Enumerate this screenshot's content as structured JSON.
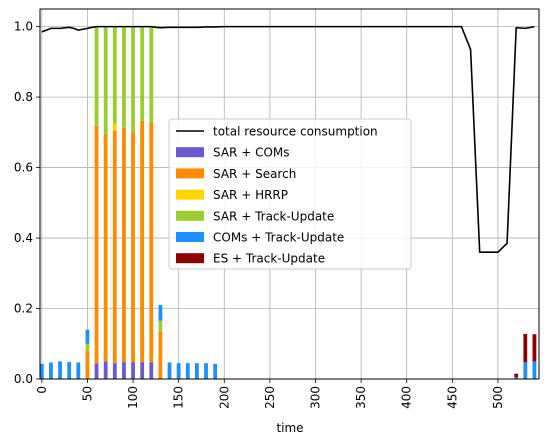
{
  "chart_data": {
    "type": "bar",
    "stacked": true,
    "title": "",
    "xlabel": "time",
    "ylabel": "",
    "xlim": [
      -2,
      545
    ],
    "ylim": [
      0.0,
      1.05
    ],
    "grid": true,
    "legend_position": "center",
    "xticks": [
      0,
      50,
      100,
      150,
      200,
      250,
      300,
      350,
      400,
      450,
      500
    ],
    "yticks": [
      0.0,
      0.2,
      0.4,
      0.6,
      0.8,
      1.0
    ],
    "xtick_rotation": 90,
    "categories": [
      0,
      10,
      20,
      30,
      40,
      50,
      60,
      70,
      80,
      90,
      100,
      110,
      120,
      130,
      140,
      150,
      160,
      170,
      180,
      190,
      520,
      530,
      540
    ],
    "series": [
      {
        "name": "SAR + COMs",
        "color": "#6a5acd",
        "values": [
          0,
          0,
          0,
          0,
          0,
          0,
          0.045,
          0.05,
          0.045,
          0.048,
          0.048,
          0.048,
          0.048,
          0,
          0,
          0,
          0,
          0,
          0,
          0,
          0,
          0,
          0
        ]
      },
      {
        "name": "SAR + Search",
        "color": "#ff8c00",
        "values": [
          0,
          0,
          0,
          0,
          0,
          0.08,
          0.675,
          0.645,
          0.66,
          0.665,
          0.655,
          0.685,
          0.68,
          0.135,
          0,
          0,
          0,
          0,
          0,
          0,
          0,
          0,
          0
        ]
      },
      {
        "name": "SAR + HRRP",
        "color": "#ffd700",
        "values": [
          0,
          0,
          0,
          0,
          0,
          0,
          0,
          0,
          0.02,
          0,
          0,
          0,
          0,
          0,
          0,
          0,
          0,
          0,
          0,
          0,
          0,
          0,
          0
        ]
      },
      {
        "name": "SAR + Track-Update",
        "color": "#9acd32",
        "values": [
          0,
          0,
          0,
          0,
          0,
          0.02,
          0.28,
          0.305,
          0.275,
          0.287,
          0.297,
          0.267,
          0.272,
          0.03,
          0,
          0,
          0,
          0,
          0,
          0,
          0,
          0,
          0
        ]
      },
      {
        "name": "COMs + Track-Update",
        "color": "#1e90ff",
        "values": [
          0.043,
          0.047,
          0.05,
          0.048,
          0.047,
          0.04,
          0,
          0,
          0,
          0,
          0,
          0,
          0,
          0.045,
          0.047,
          0.045,
          0.045,
          0.045,
          0.045,
          0.043,
          0.005,
          0.048,
          0.05
        ]
      },
      {
        "name": "ES + Track-Update",
        "color": "#8b0000",
        "values": [
          0,
          0,
          0,
          0,
          0,
          0,
          0,
          0,
          0,
          0,
          0,
          0,
          0,
          0,
          0,
          0,
          0,
          0,
          0,
          0,
          0.01,
          0.08,
          0.077
        ]
      }
    ],
    "line": {
      "name": "total resource consumption",
      "color": "#000000",
      "x": [
        0,
        5,
        10,
        20,
        30,
        35,
        40,
        50,
        55,
        60,
        70,
        80,
        90,
        100,
        110,
        120,
        125,
        130,
        140,
        150,
        160,
        170,
        180,
        190,
        200,
        300,
        400,
        460,
        470,
        480,
        490,
        500,
        510,
        520,
        530,
        540
      ],
      "y": [
        0.985,
        0.99,
        0.995,
        0.995,
        0.998,
        0.995,
        0.99,
        0.995,
        0.998,
        1.0,
        1.0,
        1.0,
        1.0,
        1.0,
        1.0,
        1.0,
        0.998,
        0.997,
        0.998,
        0.998,
        0.998,
        0.998,
        0.999,
        0.999,
        1.0,
        1.0,
        1.0,
        1.0,
        0.935,
        0.36,
        0.36,
        0.36,
        0.385,
        0.997,
        0.995,
        1.0
      ]
    }
  }
}
